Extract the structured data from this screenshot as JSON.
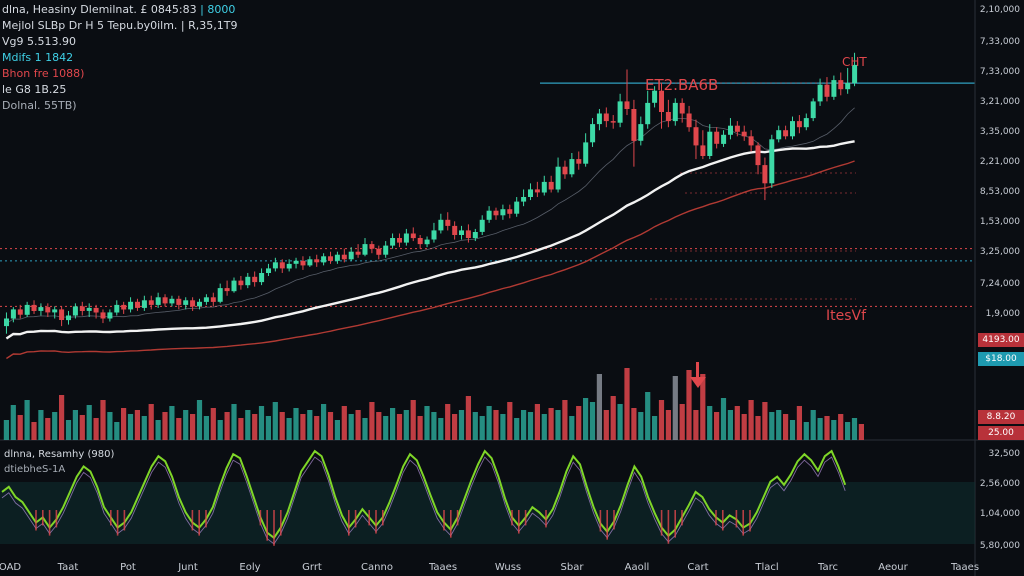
{
  "header": {
    "line1": "dlna, Heasiny Dlemilnat. £ 0845:83",
    "line1_value": "| 8000",
    "line2": "Mejlol SLBp Dr H 5 Tepu.by0ilm. | R,35,1T9",
    "line3": "Vg9 5.513.90",
    "line4": "Mdifs 1 1842",
    "line5": "Bhon fre 1088)",
    "line6": "le G8 1B.25",
    "line7": "Dolnal. 55TB)"
  },
  "annotations": {
    "price_label": "ET2.BA6B",
    "peak_label": "CHT",
    "mid_label": "ItesVf"
  },
  "oscillator": {
    "title": "dlnna, Resamhy (980)",
    "subtitle": "dtiebheS-1A"
  },
  "price_tags": [
    "4193.00",
    "$18.00",
    "8.8.20",
    "25.00"
  ],
  "colors": {
    "bg": "#0a0d12",
    "bull": "#3dd9a6",
    "bear": "#e0474c",
    "ma_white": "#f2f2f2",
    "ma_red": "#b13a33",
    "ma_grey": "#8b93a1",
    "cyan_line": "#2fa0c0",
    "osc_line": "#7fd628"
  },
  "chart_data": {
    "type": "candlestick",
    "right_axis": [
      "2,10,000",
      "7,33,000",
      "7,33,000",
      "3,21,000",
      "3,35,000",
      "2,21,000",
      "8,53,000",
      "1,53,000",
      "3,25,000",
      "7,24,000",
      "1,9,000"
    ],
    "osc_axis": [
      "32,500",
      "2,56,000",
      "1,04,000",
      "5,80,000"
    ],
    "x_labels": [
      "OAD",
      "Taat",
      "Pot",
      "Junt",
      "Eoly",
      "Grrt",
      "Canno",
      "Taaes",
      "Wuss",
      "Sbar",
      "Aaoll",
      "Cart",
      "Tlacl",
      "Tarc",
      "Aeour",
      "Taaes"
    ],
    "y_range": [
      0,
      540
    ],
    "horizontal_levels": {
      "cyan_upper": 470,
      "red_mid": 252,
      "cyan_mid": 236,
      "red_lower": 176
    },
    "candles": [
      [
        150,
        160,
        140,
        168
      ],
      [
        160,
        172,
        155,
        175
      ],
      [
        172,
        165,
        160,
        178
      ],
      [
        165,
        178,
        162,
        182
      ],
      [
        178,
        170,
        166,
        184
      ],
      [
        170,
        175,
        164,
        180
      ],
      [
        175,
        168,
        162,
        180
      ],
      [
        168,
        172,
        160,
        176
      ],
      [
        172,
        158,
        150,
        176
      ],
      [
        158,
        164,
        152,
        170
      ],
      [
        164,
        176,
        160,
        180
      ],
      [
        176,
        170,
        164,
        182
      ],
      [
        170,
        174,
        162,
        180
      ],
      [
        174,
        168,
        160,
        178
      ],
      [
        168,
        160,
        154,
        172
      ],
      [
        160,
        168,
        156,
        172
      ],
      [
        168,
        178,
        164,
        184
      ],
      [
        178,
        172,
        166,
        182
      ],
      [
        172,
        182,
        168,
        188
      ],
      [
        182,
        174,
        170,
        186
      ],
      [
        174,
        184,
        170,
        190
      ],
      [
        184,
        178,
        172,
        190
      ],
      [
        178,
        188,
        174,
        194
      ],
      [
        188,
        180,
        176,
        192
      ],
      [
        180,
        186,
        176,
        190
      ],
      [
        186,
        178,
        172,
        190
      ],
      [
        178,
        184,
        172,
        188
      ],
      [
        184,
        176,
        170,
        188
      ],
      [
        176,
        182,
        172,
        186
      ],
      [
        182,
        188,
        178,
        192
      ],
      [
        188,
        182,
        176,
        194
      ],
      [
        182,
        200,
        180,
        206
      ],
      [
        200,
        196,
        190,
        210
      ],
      [
        196,
        210,
        194,
        214
      ],
      [
        210,
        204,
        198,
        216
      ],
      [
        204,
        215,
        200,
        220
      ],
      [
        215,
        208,
        202,
        222
      ],
      [
        208,
        220,
        204,
        226
      ],
      [
        220,
        226,
        216,
        232
      ],
      [
        226,
        234,
        222,
        240
      ],
      [
        234,
        226,
        220,
        238
      ],
      [
        226,
        232,
        222,
        238
      ],
      [
        232,
        236,
        226,
        240
      ],
      [
        236,
        230,
        224,
        242
      ],
      [
        230,
        238,
        228,
        242
      ],
      [
        238,
        234,
        228,
        244
      ],
      [
        234,
        242,
        230,
        246
      ],
      [
        242,
        236,
        232,
        248
      ],
      [
        236,
        244,
        232,
        248
      ],
      [
        244,
        238,
        234,
        252
      ],
      [
        238,
        248,
        236,
        254
      ],
      [
        248,
        244,
        240,
        258
      ],
      [
        244,
        258,
        242,
        266
      ],
      [
        258,
        252,
        246,
        262
      ],
      [
        252,
        244,
        238,
        256
      ],
      [
        244,
        256,
        240,
        262
      ],
      [
        256,
        266,
        252,
        272
      ],
      [
        266,
        260,
        254,
        272
      ],
      [
        260,
        272,
        256,
        278
      ],
      [
        272,
        266,
        262,
        280
      ],
      [
        266,
        258,
        252,
        270
      ],
      [
        258,
        264,
        254,
        268
      ],
      [
        264,
        276,
        260,
        286
      ],
      [
        276,
        290,
        272,
        298
      ],
      [
        290,
        282,
        276,
        300
      ],
      [
        282,
        270,
        264,
        288
      ],
      [
        270,
        276,
        264,
        282
      ],
      [
        276,
        266,
        260,
        284
      ],
      [
        266,
        274,
        262,
        278
      ],
      [
        274,
        290,
        270,
        296
      ],
      [
        290,
        302,
        286,
        308
      ],
      [
        302,
        296,
        290,
        306
      ],
      [
        296,
        304,
        290,
        310
      ],
      [
        304,
        298,
        292,
        310
      ],
      [
        298,
        314,
        294,
        320
      ],
      [
        314,
        320,
        308,
        330
      ],
      [
        320,
        330,
        316,
        338
      ],
      [
        330,
        326,
        320,
        340
      ],
      [
        326,
        340,
        322,
        348
      ],
      [
        340,
        330,
        326,
        348
      ],
      [
        330,
        360,
        326,
        372
      ],
      [
        360,
        350,
        344,
        368
      ],
      [
        350,
        370,
        346,
        378
      ],
      [
        370,
        364,
        356,
        380
      ],
      [
        364,
        392,
        360,
        404
      ],
      [
        392,
        416,
        386,
        424
      ],
      [
        416,
        430,
        408,
        436
      ],
      [
        430,
        420,
        412,
        438
      ],
      [
        420,
        418,
        410,
        428
      ],
      [
        418,
        446,
        412,
        456
      ],
      [
        446,
        436,
        428,
        488
      ],
      [
        436,
        394,
        360,
        448
      ],
      [
        394,
        416,
        388,
        426
      ],
      [
        416,
        444,
        410,
        460
      ],
      [
        444,
        460,
        438,
        466
      ],
      [
        460,
        432,
        410,
        470
      ],
      [
        432,
        420,
        412,
        448
      ],
      [
        420,
        444,
        414,
        450
      ],
      [
        444,
        430,
        418,
        450
      ],
      [
        430,
        412,
        406,
        440
      ],
      [
        412,
        388,
        370,
        422
      ],
      [
        388,
        374,
        370,
        408
      ],
      [
        374,
        406,
        370,
        416
      ],
      [
        406,
        390,
        384,
        412
      ],
      [
        390,
        402,
        386,
        408
      ],
      [
        402,
        414,
        396,
        424
      ],
      [
        414,
        406,
        400,
        420
      ],
      [
        406,
        400,
        394,
        414
      ],
      [
        400,
        388,
        380,
        408
      ],
      [
        388,
        362,
        350,
        392
      ],
      [
        362,
        338,
        316,
        372
      ],
      [
        338,
        396,
        332,
        402
      ],
      [
        396,
        408,
        392,
        414
      ],
      [
        408,
        400,
        396,
        414
      ],
      [
        400,
        420,
        396,
        426
      ],
      [
        420,
        412,
        404,
        428
      ],
      [
        412,
        424,
        408,
        430
      ],
      [
        424,
        446,
        420,
        450
      ],
      [
        446,
        468,
        440,
        476
      ],
      [
        468,
        452,
        446,
        478
      ],
      [
        452,
        474,
        448,
        480
      ],
      [
        474,
        462,
        454,
        484
      ],
      [
        462,
        470,
        456,
        490
      ],
      [
        470,
        494,
        466,
        510
      ]
    ],
    "volume": [
      20,
      35,
      25,
      40,
      18,
      30,
      22,
      28,
      45,
      20,
      30,
      25,
      35,
      22,
      40,
      28,
      18,
      32,
      26,
      30,
      24,
      36,
      20,
      28,
      34,
      22,
      30,
      26,
      40,
      24,
      32,
      20,
      28,
      36,
      22,
      30,
      26,
      34,
      24,
      38,
      28,
      22,
      32,
      26,
      30,
      24,
      36,
      28,
      20,
      34,
      26,
      30,
      22,
      38,
      28,
      24,
      32,
      26,
      30,
      40,
      24,
      34,
      28,
      22,
      36,
      26,
      30,
      44,
      28,
      24,
      34,
      30,
      26,
      38,
      22,
      30,
      28,
      36,
      26,
      32,
      30,
      40,
      24,
      34,
      42,
      38,
      66,
      30,
      44,
      36,
      72,
      32,
      28,
      48,
      24,
      40,
      30,
      64,
      36,
      70,
      30,
      66,
      34,
      28,
      42,
      30,
      34,
      26,
      40,
      24,
      38,
      28,
      30,
      26,
      20,
      34,
      18,
      30,
      22,
      24,
      20,
      26,
      18,
      22,
      16
    ],
    "oscillator_values": [
      0.55,
      0.6,
      0.5,
      0.45,
      0.35,
      0.25,
      0.3,
      0.2,
      0.28,
      0.4,
      0.55,
      0.7,
      0.8,
      0.75,
      0.6,
      0.4,
      0.3,
      0.2,
      0.25,
      0.35,
      0.5,
      0.65,
      0.8,
      0.9,
      0.85,
      0.7,
      0.5,
      0.35,
      0.25,
      0.2,
      0.28,
      0.4,
      0.6,
      0.78,
      0.92,
      0.88,
      0.7,
      0.5,
      0.3,
      0.15,
      0.1,
      0.2,
      0.35,
      0.55,
      0.75,
      0.85,
      0.95,
      0.9,
      0.72,
      0.5,
      0.32,
      0.2,
      0.28,
      0.38,
      0.3,
      0.22,
      0.3,
      0.45,
      0.62,
      0.8,
      0.92,
      0.86,
      0.7,
      0.52,
      0.35,
      0.25,
      0.18,
      0.3,
      0.48,
      0.66,
      0.82,
      0.95,
      0.88,
      0.7,
      0.48,
      0.3,
      0.22,
      0.3,
      0.4,
      0.35,
      0.28,
      0.38,
      0.55,
      0.75,
      0.9,
      0.82,
      0.6,
      0.4,
      0.24,
      0.16,
      0.26,
      0.42,
      0.62,
      0.8,
      0.7,
      0.5,
      0.34,
      0.2,
      0.12,
      0.18,
      0.3,
      0.42,
      0.55,
      0.5,
      0.38,
      0.3,
      0.25,
      0.32,
      0.28,
      0.2,
      0.24,
      0.35,
      0.5,
      0.65,
      0.7,
      0.62,
      0.72,
      0.85,
      0.92,
      0.86,
      0.76,
      0.9,
      0.95,
      0.8,
      0.62
    ]
  }
}
